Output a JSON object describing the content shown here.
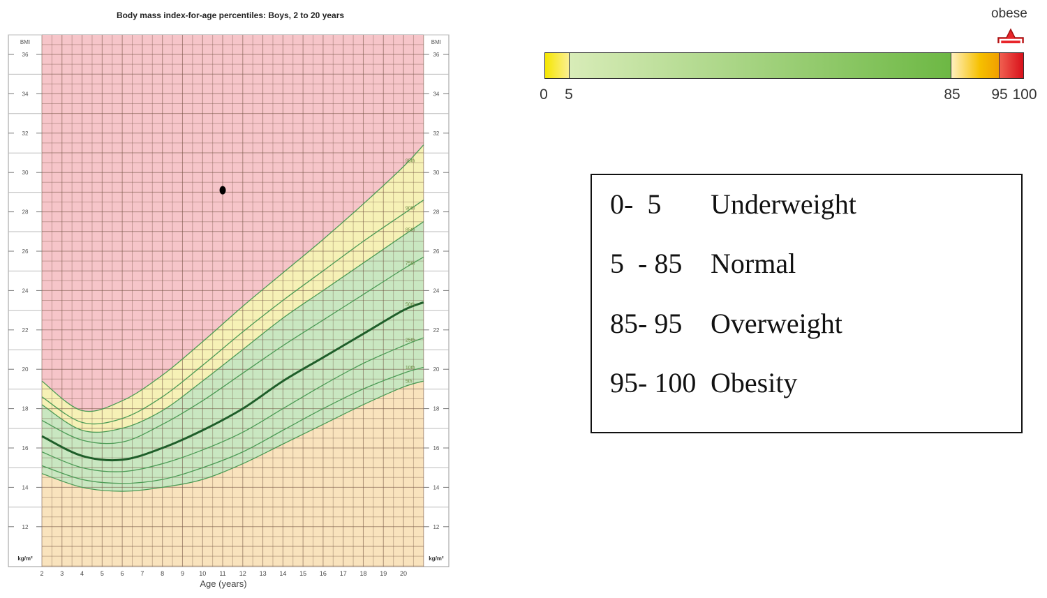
{
  "chart_data": {
    "type": "line",
    "title": "Body mass index-for-age percentiles: Boys, 2 to 20 years",
    "xlabel": "Age (years)",
    "ylabel": "BMI",
    "yunit": "kg/m²",
    "xlim": [
      2,
      21
    ],
    "ylim": [
      10,
      37
    ],
    "xticks": [
      2,
      3,
      4,
      5,
      6,
      7,
      8,
      9,
      10,
      11,
      12,
      13,
      14,
      15,
      16,
      17,
      18,
      19,
      20
    ],
    "yticks": [
      12,
      14,
      16,
      18,
      20,
      22,
      24,
      26,
      28,
      30,
      32,
      34,
      36
    ],
    "grid": true,
    "x": [
      2,
      4,
      6,
      8,
      10,
      12,
      14,
      16,
      18,
      20,
      21
    ],
    "series": [
      {
        "name": "5th",
        "values": [
          14.7,
          14.0,
          13.8,
          14.0,
          14.4,
          15.2,
          16.2,
          17.2,
          18.2,
          19.1,
          19.4
        ]
      },
      {
        "name": "10th",
        "values": [
          15.1,
          14.4,
          14.2,
          14.4,
          15.0,
          15.8,
          16.9,
          18.0,
          19.0,
          19.8,
          20.1
        ]
      },
      {
        "name": "25th",
        "values": [
          15.8,
          15.0,
          14.8,
          15.2,
          15.9,
          16.8,
          18.0,
          19.2,
          20.3,
          21.2,
          21.6
        ]
      },
      {
        "name": "50th",
        "values": [
          16.6,
          15.6,
          15.4,
          16.0,
          16.9,
          18.0,
          19.4,
          20.6,
          21.8,
          23.0,
          23.4
        ]
      },
      {
        "name": "75th",
        "values": [
          17.4,
          16.4,
          16.3,
          17.2,
          18.4,
          19.8,
          21.2,
          22.5,
          23.8,
          25.1,
          25.7
        ]
      },
      {
        "name": "85th",
        "values": [
          18.2,
          16.9,
          17.0,
          17.9,
          19.4,
          21.0,
          22.6,
          24.0,
          25.4,
          26.8,
          27.5
        ]
      },
      {
        "name": "90th",
        "values": [
          18.6,
          17.3,
          17.5,
          18.6,
          20.2,
          21.9,
          23.5,
          25.0,
          26.5,
          27.9,
          28.6
        ]
      },
      {
        "name": "95th",
        "values": [
          19.4,
          17.9,
          18.4,
          19.7,
          21.4,
          23.2,
          24.9,
          26.6,
          28.4,
          30.3,
          31.4
        ]
      }
    ],
    "point": {
      "age": 11,
      "bmi": 29.1
    },
    "side_label": "BMI",
    "unit_label": "kg/m²"
  },
  "bar": {
    "ticks": [
      "0",
      "5",
      "85",
      "95",
      "100"
    ],
    "obese_label": "obese"
  },
  "legend": [
    {
      "range": "0-  5",
      "label": "Underweight"
    },
    {
      "range": "5  - 85",
      "label": "Normal"
    },
    {
      "range": "85- 95",
      "label": "Overweight"
    },
    {
      "range": "95- 100",
      "label": "Obesity"
    }
  ],
  "colors": {
    "obese": "#f6c5c9",
    "overweight": "#f6f1b6",
    "normal": "#c9e7c1",
    "under": "#f9e3bd",
    "curve": "#4c9a55",
    "median": "#1f5e2a"
  }
}
